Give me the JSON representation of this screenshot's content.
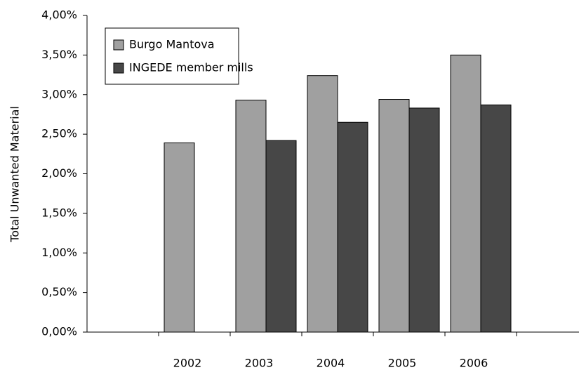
{
  "chart_data": {
    "type": "bar",
    "y_label": "Total Unwanted Material",
    "categories": [
      null,
      "2002",
      "2003",
      "2004",
      "2005",
      "2006",
      null
    ],
    "series": [
      {
        "name": "Burgo Mantova",
        "color": "#a0a0a0",
        "values": [
          null,
          2.39,
          2.93,
          3.24,
          2.94,
          3.5,
          null
        ]
      },
      {
        "name": "INGEDE member mills",
        "color": "#474747",
        "values": [
          null,
          null,
          2.42,
          2.65,
          2.83,
          2.87,
          null
        ]
      }
    ],
    "ylim": [
      0,
      4
    ],
    "yticks": [
      {
        "value": 0,
        "label": "0,00%"
      },
      {
        "value": 0.5,
        "label": "0,50%"
      },
      {
        "value": 1,
        "label": "1,00%"
      },
      {
        "value": 1.5,
        "label": "1,50%"
      },
      {
        "value": 2,
        "label": "2,00%"
      },
      {
        "value": 2.5,
        "label": "2,50%"
      },
      {
        "value": 3,
        "label": "3,00%"
      },
      {
        "value": 3.5,
        "label": "3,50%"
      },
      {
        "value": 4,
        "label": "4,00%"
      }
    ],
    "legend": "upper left"
  }
}
